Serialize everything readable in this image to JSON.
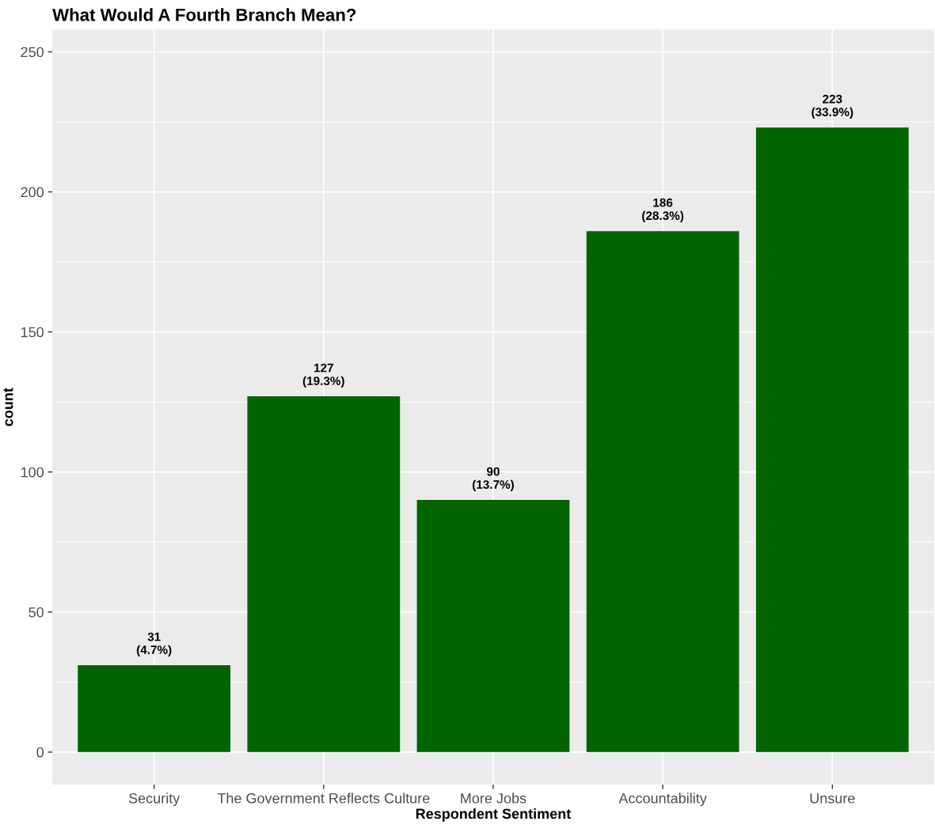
{
  "chart_data": {
    "type": "bar",
    "title": "What Would A Fourth Branch Mean?",
    "xlabel": "Respondent Sentiment",
    "ylabel": "count",
    "categories": [
      "Security",
      "The Government Reflects Culture",
      "More Jobs",
      "Accountability",
      "Unsure"
    ],
    "values": [
      31,
      127,
      90,
      186,
      223
    ],
    "color": "#006400",
    "value_labels": [
      "31\n(4.7%)",
      "127\n(19.3%)",
      "90\n(13.7%)",
      "186\n(28.3%)",
      "223\n(33.9%)"
    ],
    "ylim": [
      -11.6,
      257.9
    ],
    "yticks": [
      0,
      50,
      100,
      150,
      200,
      250
    ],
    "grid": true
  }
}
